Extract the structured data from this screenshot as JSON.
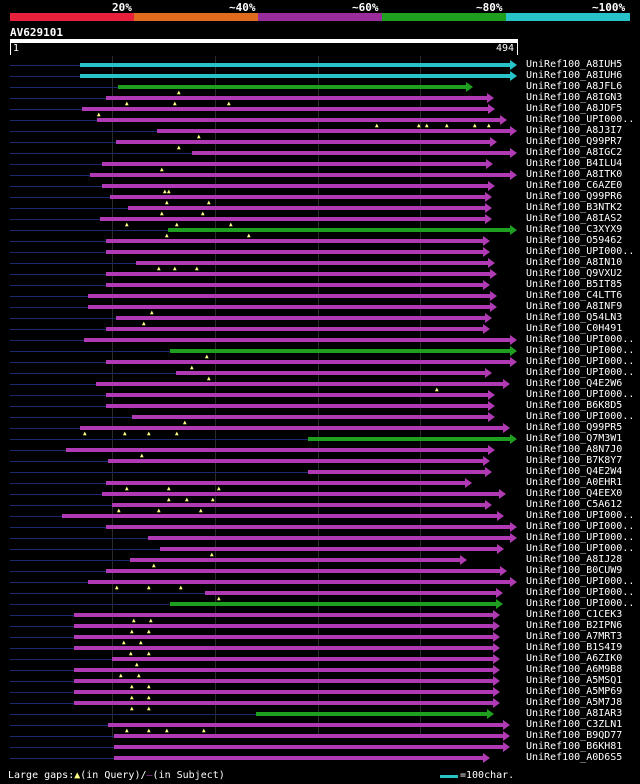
{
  "legend": {
    "segments": [
      {
        "label": "20%",
        "color": "#e8203c"
      },
      {
        "label": "~40%",
        "color": "#e06a1e"
      },
      {
        "label": "~60%",
        "color": "#9a2d9c"
      },
      {
        "label": "~80%",
        "color": "#1f9f1f"
      },
      {
        "label": "~100%",
        "color": "#27c3c9"
      }
    ]
  },
  "query": {
    "name": "AV629101",
    "start": "1",
    "end": "494",
    "length": 494
  },
  "colors": {
    "cyan": "#27c3c9",
    "green": "#1f9f1f",
    "magenta": "#b03ab4",
    "line": "#1a2a6c"
  },
  "hits": [
    {
      "label": "UniRef100_A8IUH5",
      "s": 80,
      "e": 517,
      "c": "cyan",
      "ls": 10,
      "le": 517,
      "g": []
    },
    {
      "label": "UniRef100_A8IUH6",
      "s": 80,
      "e": 517,
      "c": "cyan",
      "ls": 10,
      "le": 517,
      "g": []
    },
    {
      "label": "UniRef100_A8JFL6",
      "s": 118,
      "e": 473,
      "c": "green",
      "ls": 10,
      "le": 473,
      "g": [
        180
      ]
    },
    {
      "label": "UniRef100_A8IGN3",
      "s": 106,
      "e": 494,
      "c": "magenta",
      "ls": 10,
      "le": 494,
      "g": [
        128,
        176,
        230
      ]
    },
    {
      "label": "UniRef100_A8JDF5",
      "s": 82,
      "e": 495,
      "c": "magenta",
      "ls": 10,
      "le": 495,
      "g": [
        100
      ]
    },
    {
      "label": "UniRef100_UPI000..",
      "s": 97,
      "e": 507,
      "c": "magenta",
      "ls": 10,
      "le": 507,
      "g": [
        378,
        420,
        428,
        448,
        476,
        490
      ]
    },
    {
      "label": "UniRef100_A8J3I7",
      "s": 157,
      "e": 517,
      "c": "magenta",
      "ls": 10,
      "le": 517,
      "g": [
        200
      ]
    },
    {
      "label": "UniRef100_Q99PR7",
      "s": 116,
      "e": 497,
      "c": "magenta",
      "ls": 10,
      "le": 497,
      "g": [
        180
      ]
    },
    {
      "label": "UniRef100_A8IGC2",
      "s": 192,
      "e": 517,
      "c": "magenta",
      "ls": 10,
      "le": 517,
      "g": []
    },
    {
      "label": "UniRef100_B4ILU4",
      "s": 102,
      "e": 493,
      "c": "magenta",
      "ls": 10,
      "le": 493,
      "g": [
        163
      ]
    },
    {
      "label": "UniRef100_A8ITK0",
      "s": 90,
      "e": 517,
      "c": "magenta",
      "ls": 10,
      "le": 517,
      "g": []
    },
    {
      "label": "UniRef100_C6AZE0",
      "s": 102,
      "e": 495,
      "c": "magenta",
      "ls": 10,
      "le": 495,
      "g": [
        166,
        170
      ]
    },
    {
      "label": "UniRef100_Q99PR6",
      "s": 110,
      "e": 492,
      "c": "magenta",
      "ls": 10,
      "le": 492,
      "g": [
        168,
        210
      ]
    },
    {
      "label": "UniRef100_B3NTK2",
      "s": 128,
      "e": 492,
      "c": "magenta",
      "ls": 10,
      "le": 492,
      "g": [
        163,
        204
      ]
    },
    {
      "label": "UniRef100_A8IAS2",
      "s": 100,
      "e": 492,
      "c": "magenta",
      "ls": 10,
      "le": 492,
      "g": [
        128,
        178,
        232
      ]
    },
    {
      "label": "UniRef100_C3XYX9",
      "s": 168,
      "e": 517,
      "c": "green",
      "ls": 10,
      "le": 517,
      "g": [
        168,
        250
      ]
    },
    {
      "label": "UniRef100_O59462",
      "s": 106,
      "e": 490,
      "c": "magenta",
      "ls": 10,
      "le": 490,
      "g": []
    },
    {
      "label": "UniRef100_UPI000..",
      "s": 106,
      "e": 490,
      "c": "magenta",
      "ls": 10,
      "le": 490,
      "g": []
    },
    {
      "label": "UniRef100_A8IN10",
      "s": 136,
      "e": 495,
      "c": "magenta",
      "ls": 10,
      "le": 495,
      "g": [
        160,
        176,
        198
      ]
    },
    {
      "label": "UniRef100_Q9VXU2",
      "s": 106,
      "e": 497,
      "c": "magenta",
      "ls": 10,
      "le": 497,
      "g": []
    },
    {
      "label": "UniRef100_B5IT85",
      "s": 106,
      "e": 490,
      "c": "magenta",
      "ls": 10,
      "le": 490,
      "g": []
    },
    {
      "label": "UniRef100_C4LTT6",
      "s": 88,
      "e": 497,
      "c": "magenta",
      "ls": 10,
      "le": 497,
      "g": []
    },
    {
      "label": "UniRef100_A8INF9",
      "s": 88,
      "e": 497,
      "c": "magenta",
      "ls": 10,
      "le": 497,
      "g": [
        153
      ]
    },
    {
      "label": "UniRef100_Q54LN3",
      "s": 116,
      "e": 492,
      "c": "magenta",
      "ls": 10,
      "le": 492,
      "g": [
        145
      ]
    },
    {
      "label": "UniRef100_C0H491",
      "s": 106,
      "e": 490,
      "c": "magenta",
      "ls": 10,
      "le": 490,
      "g": []
    },
    {
      "label": "UniRef100_UPI000..",
      "s": 84,
      "e": 517,
      "c": "magenta",
      "ls": 10,
      "le": 517,
      "g": []
    },
    {
      "label": "UniRef100_UPI000..",
      "s": 170,
      "e": 517,
      "c": "green",
      "ls": 10,
      "le": 517,
      "g": [
        208
      ]
    },
    {
      "label": "UniRef100_UPI000..",
      "s": 106,
      "e": 517,
      "c": "magenta",
      "ls": 10,
      "le": 517,
      "g": [
        193
      ]
    },
    {
      "label": "UniRef100_UPI000..",
      "s": 176,
      "e": 492,
      "c": "magenta",
      "ls": 10,
      "le": 492,
      "g": [
        210
      ]
    },
    {
      "label": "UniRef100_Q4E2W6",
      "s": 96,
      "e": 510,
      "c": "magenta",
      "ls": 10,
      "le": 510,
      "g": [
        438
      ]
    },
    {
      "label": "UniRef100_UPI000..",
      "s": 106,
      "e": 495,
      "c": "magenta",
      "ls": 10,
      "le": 495,
      "g": []
    },
    {
      "label": "UniRef100_B6K8D5",
      "s": 106,
      "e": 495,
      "c": "magenta",
      "ls": 10,
      "le": 495,
      "g": []
    },
    {
      "label": "UniRef100_UPI000..",
      "s": 132,
      "e": 495,
      "c": "magenta",
      "ls": 10,
      "le": 495,
      "g": [
        186
      ]
    },
    {
      "label": "UniRef100_Q99PR5",
      "s": 80,
      "e": 510,
      "c": "magenta",
      "ls": 10,
      "le": 510,
      "g": [
        86,
        126,
        150,
        178
      ]
    },
    {
      "label": "UniRef100_Q7M3W1",
      "s": 308,
      "e": 517,
      "c": "green",
      "ls": 10,
      "le": 517,
      "g": []
    },
    {
      "label": "UniRef100_A8N7J0",
      "s": 66,
      "e": 495,
      "c": "magenta",
      "ls": 10,
      "le": 495,
      "g": [
        143
      ]
    },
    {
      "label": "UniRef100_B7K8Y7",
      "s": 108,
      "e": 490,
      "c": "magenta",
      "ls": 10,
      "le": 490,
      "g": []
    },
    {
      "label": "UniRef100_Q4E2W4",
      "s": 308,
      "e": 492,
      "c": "magenta",
      "ls": 10,
      "le": 492,
      "g": []
    },
    {
      "label": "UniRef100_A0EHR1",
      "s": 106,
      "e": 472,
      "c": "magenta",
      "ls": 10,
      "le": 472,
      "g": [
        128,
        170,
        220
      ]
    },
    {
      "label": "UniRef100_Q4EEX0",
      "s": 102,
      "e": 506,
      "c": "magenta",
      "ls": 10,
      "le": 506,
      "g": [
        170,
        188,
        214
      ]
    },
    {
      "label": "UniRef100_C5A612",
      "s": 112,
      "e": 492,
      "c": "magenta",
      "ls": 10,
      "le": 492,
      "g": [
        120,
        160,
        202
      ]
    },
    {
      "label": "UniRef100_UPI000..",
      "s": 62,
      "e": 504,
      "c": "magenta",
      "ls": 10,
      "le": 504,
      "g": []
    },
    {
      "label": "UniRef100_UPI000..",
      "s": 106,
      "e": 517,
      "c": "magenta",
      "ls": 10,
      "le": 517,
      "g": []
    },
    {
      "label": "UniRef100_UPI000..",
      "s": 148,
      "e": 517,
      "c": "magenta",
      "ls": 10,
      "le": 517,
      "g": []
    },
    {
      "label": "UniRef100_UPI000..",
      "s": 160,
      "e": 504,
      "c": "magenta",
      "ls": 10,
      "le": 504,
      "g": [
        213
      ]
    },
    {
      "label": "UniRef100_A8IJ28",
      "s": 130,
      "e": 467,
      "c": "magenta",
      "ls": 10,
      "le": 467,
      "g": [
        155
      ]
    },
    {
      "label": "UniRef100_B0CUW9",
      "s": 106,
      "e": 507,
      "c": "magenta",
      "ls": 10,
      "le": 507,
      "g": []
    },
    {
      "label": "UniRef100_UPI000..",
      "s": 88,
      "e": 517,
      "c": "magenta",
      "ls": 10,
      "le": 517,
      "g": [
        118,
        150,
        182
      ]
    },
    {
      "label": "UniRef100_UPI000..",
      "s": 205,
      "e": 503,
      "c": "magenta",
      "ls": 10,
      "le": 503,
      "g": [
        220
      ]
    },
    {
      "label": "UniRef100_UPI000..",
      "s": 170,
      "e": 503,
      "c": "green",
      "ls": 10,
      "le": 503,
      "g": []
    },
    {
      "label": "UniRef100_C1CEK3",
      "s": 74,
      "e": 500,
      "c": "magenta",
      "ls": 10,
      "le": 500,
      "g": [
        135,
        152
      ]
    },
    {
      "label": "UniRef100_B2IPN6",
      "s": 74,
      "e": 500,
      "c": "magenta",
      "ls": 10,
      "le": 500,
      "g": [
        133,
        150
      ]
    },
    {
      "label": "UniRef100_A7MRT3",
      "s": 74,
      "e": 500,
      "c": "magenta",
      "ls": 10,
      "le": 500,
      "g": [
        125,
        142
      ]
    },
    {
      "label": "UniRef100_B1S4I9",
      "s": 74,
      "e": 500,
      "c": "magenta",
      "ls": 10,
      "le": 500,
      "g": [
        132,
        150
      ]
    },
    {
      "label": "UniRef100_A6ZIK0",
      "s": 112,
      "e": 500,
      "c": "magenta",
      "ls": 10,
      "le": 500,
      "g": [
        138
      ]
    },
    {
      "label": "UniRef100_A6M9B8",
      "s": 74,
      "e": 500,
      "c": "magenta",
      "ls": 10,
      "le": 500,
      "g": [
        122,
        140
      ]
    },
    {
      "label": "UniRef100_A5MSQ1",
      "s": 74,
      "e": 500,
      "c": "magenta",
      "ls": 10,
      "le": 500,
      "g": [
        133,
        150
      ]
    },
    {
      "label": "UniRef100_A5MP69",
      "s": 74,
      "e": 500,
      "c": "magenta",
      "ls": 10,
      "le": 500,
      "g": [
        133,
        150
      ]
    },
    {
      "label": "UniRef100_A5M7J8",
      "s": 74,
      "e": 500,
      "c": "magenta",
      "ls": 10,
      "le": 500,
      "g": [
        133,
        150
      ]
    },
    {
      "label": "UniRef100_A8IAR3",
      "s": 256,
      "e": 494,
      "c": "green",
      "ls": 10,
      "le": 494,
      "g": []
    },
    {
      "label": "UniRef100_C3ZLN1",
      "s": 108,
      "e": 510,
      "c": "magenta",
      "ls": 10,
      "le": 510,
      "g": [
        128,
        150,
        168,
        205
      ]
    },
    {
      "label": "UniRef100_B9QD77",
      "s": 114,
      "e": 510,
      "c": "magenta",
      "ls": 10,
      "le": 510,
      "g": []
    },
    {
      "label": "UniRef100_B6KH81",
      "s": 114,
      "e": 510,
      "c": "magenta",
      "ls": 10,
      "le": 510,
      "g": []
    },
    {
      "label": "UniRef100_A0D6S5",
      "s": 114,
      "e": 490,
      "c": "magenta",
      "ls": 10,
      "le": 490,
      "g": []
    }
  ],
  "footer": {
    "large_gaps": "Large gaps:",
    "in_query": "(in Query)/",
    "in_subject": "(in Subject)",
    "scale": "=100char."
  }
}
